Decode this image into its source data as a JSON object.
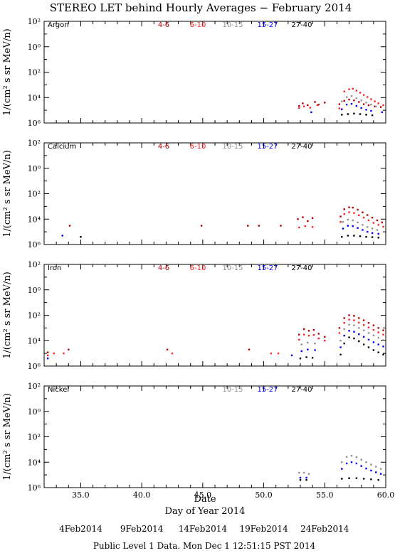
{
  "title": "STEREO LET behind Hourly Averages − February 2014",
  "ylabel": "1/(cm² s sr MeV/n)",
  "xlabel_date": "Date",
  "xlabel": "Day of Year 2014",
  "x_ticks": [
    "35.0",
    "40.0",
    "45.0",
    "50.0",
    "55.0",
    "60.0"
  ],
  "date_ticks": [
    "4Feb2014",
    "9Feb2014",
    "14Feb2014",
    "19Feb2014",
    "24Feb2014"
  ],
  "footer": "Public Level 1 Data.  Mon Dec  1 12:51:15 PST 2014",
  "y_tick_labels": [
    "10⁶",
    "10⁴",
    "10²",
    "10⁰",
    "10²"
  ],
  "colors": {
    "4-6": "#b00000",
    "6-10": "#ff2020",
    "10-15": "#909090",
    "15-27": "#0000ff",
    "27-40": "#000000"
  },
  "chart_data": [
    {
      "type": "scatter",
      "element": "Argon",
      "legend": [
        "4-6",
        "6-10",
        "10-15",
        "15-27",
        "27-40"
      ],
      "xlim": [
        32,
        60
      ],
      "ylim": [
        1e-06,
        100
      ],
      "yscale": "log",
      "series": [
        {
          "name": "4-6",
          "points": [
            [
              52.9,
              2.2e-05
            ],
            [
              53.2,
              3.5e-05
            ],
            [
              53.6,
              2.5e-05
            ],
            [
              54.2,
              4.5e-05
            ],
            [
              54.5,
              2.8e-05
            ],
            [
              55.0,
              4e-05
            ],
            [
              56.2,
              3e-05
            ],
            [
              56.6,
              5.5e-05
            ],
            [
              57.0,
              7e-05
            ],
            [
              57.4,
              6e-05
            ],
            [
              57.8,
              4.5e-05
            ],
            [
              58.2,
              3e-05
            ],
            [
              58.6,
              2.5e-05
            ],
            [
              59.1,
              2e-05
            ],
            [
              59.6,
              1.8e-05
            ]
          ]
        },
        {
          "name": "6-10",
          "points": [
            [
              52.9,
              1.5e-05
            ],
            [
              53.3,
              2e-05
            ],
            [
              53.8,
              1.6e-05
            ],
            [
              54.4,
              2.5e-05
            ],
            [
              56.2,
              1.4e-05
            ],
            [
              56.6,
              0.0003
            ],
            [
              57.0,
              0.00045
            ],
            [
              57.3,
              0.0005
            ],
            [
              57.6,
              0.00035
            ],
            [
              57.9,
              0.00024
            ],
            [
              58.2,
              0.00016
            ],
            [
              58.5,
              0.00011
            ],
            [
              58.8,
              7.5e-05
            ],
            [
              59.1,
              5e-05
            ],
            [
              59.4,
              3.5e-05
            ],
            [
              59.8,
              2.5e-05
            ]
          ]
        },
        {
          "name": "10-15",
          "points": [
            [
              56.4,
              5e-05
            ],
            [
              56.8,
              0.00011
            ],
            [
              57.2,
              0.00013
            ],
            [
              57.6,
              9e-05
            ],
            [
              58.0,
              6e-05
            ],
            [
              58.4,
              4e-05
            ],
            [
              58.8,
              2.8e-05
            ],
            [
              59.2,
              2e-05
            ]
          ]
        },
        {
          "name": "15-27",
          "points": [
            [
              53.9,
              7e-06
            ],
            [
              56.4,
              1.2e-05
            ],
            [
              56.8,
              2.8e-05
            ],
            [
              57.2,
              3.2e-05
            ],
            [
              57.6,
              2.2e-05
            ],
            [
              58.0,
              1.5e-05
            ],
            [
              58.4,
              1.1e-05
            ],
            [
              58.8,
              9e-06
            ],
            [
              59.7,
              7e-06
            ]
          ]
        },
        {
          "name": "27-40",
          "points": [
            [
              56.4,
              4.5e-06
            ],
            [
              56.9,
              5e-06
            ],
            [
              57.4,
              5.5e-06
            ],
            [
              57.9,
              5e-06
            ],
            [
              58.4,
              4.5e-06
            ],
            [
              58.9,
              4e-06
            ]
          ]
        }
      ]
    },
    {
      "type": "scatter",
      "element": "Calcium",
      "legend": [
        "4-6",
        "6-10",
        "10-15",
        "15-27",
        "27-40"
      ],
      "xlim": [
        32,
        60
      ],
      "ylim": [
        1e-06,
        100
      ],
      "yscale": "log",
      "series": [
        {
          "name": "4-6",
          "points": [
            [
              34.1,
              3e-05
            ],
            [
              44.9,
              3e-05
            ],
            [
              48.7,
              3e-05
            ],
            [
              49.6,
              3e-05
            ],
            [
              51.4,
              3e-05
            ],
            [
              52.8,
              0.0001
            ],
            [
              53.2,
              0.00014
            ],
            [
              53.6,
              7e-05
            ],
            [
              54.0,
              0.00012
            ],
            [
              56.3,
              0.00016
            ],
            [
              56.6,
              0.0006
            ],
            [
              57.0,
              0.00085
            ],
            [
              57.3,
              0.0008
            ],
            [
              57.7,
              0.00055
            ],
            [
              58.1,
              0.00034
            ],
            [
              58.5,
              0.00021
            ],
            [
              58.9,
              0.00013
            ],
            [
              59.3,
              8e-05
            ],
            [
              59.7,
              5.5e-05
            ]
          ]
        },
        {
          "name": "6-10",
          "points": [
            [
              52.9,
              2.2e-05
            ],
            [
              53.4,
              2.8e-05
            ],
            [
              54.0,
              2.4e-05
            ],
            [
              56.3,
              6e-05
            ],
            [
              56.6,
              0.00025
            ],
            [
              57.0,
              0.00035
            ],
            [
              57.4,
              0.0003
            ],
            [
              57.8,
              0.0002
            ],
            [
              58.2,
              0.00013
            ],
            [
              58.6,
              8e-05
            ],
            [
              59.0,
              5e-05
            ],
            [
              59.4,
              3.5e-05
            ],
            [
              59.8,
              2.5e-05
            ]
          ]
        },
        {
          "name": "10-15",
          "points": [
            [
              56.5,
              6e-05
            ],
            [
              56.9,
              9e-05
            ],
            [
              57.3,
              8e-05
            ],
            [
              57.7,
              5.5e-05
            ],
            [
              58.1,
              3.5e-05
            ],
            [
              58.5,
              2.4e-05
            ],
            [
              58.9,
              1.8e-05
            ],
            [
              59.3,
              1.4e-05
            ]
          ]
        },
        {
          "name": "15-27",
          "points": [
            [
              33.5,
              5e-06
            ],
            [
              56.5,
              1.8e-05
            ],
            [
              56.9,
              3e-05
            ],
            [
              57.3,
              2.8e-05
            ],
            [
              57.7,
              2e-05
            ],
            [
              58.1,
              1.4e-05
            ],
            [
              58.5,
              1e-05
            ],
            [
              58.9,
              8e-06
            ],
            [
              59.4,
              7e-06
            ]
          ]
        },
        {
          "name": "27-40",
          "points": [
            [
              35.0,
              4e-06
            ],
            [
              56.4,
              4e-06
            ],
            [
              56.9,
              5e-06
            ],
            [
              57.4,
              5e-06
            ],
            [
              57.9,
              4.5e-06
            ],
            [
              58.4,
              4e-06
            ],
            [
              58.9,
              3.8e-06
            ],
            [
              59.4,
              3.5e-06
            ]
          ]
        }
      ]
    },
    {
      "type": "scatter",
      "element": "Iron",
      "legend": [
        "4-6",
        "6-10",
        "10-15",
        "15-27",
        "27-40"
      ],
      "xlim": [
        32,
        60
      ],
      "ylim": [
        1e-06,
        100
      ],
      "yscale": "log",
      "series": [
        {
          "name": "4-6",
          "points": [
            [
              32.3,
              1.2e-05
            ],
            [
              34.0,
              2e-05
            ],
            [
              42.1,
              2e-05
            ],
            [
              48.8,
              2e-05
            ],
            [
              52.9,
              0.0003
            ],
            [
              53.3,
              0.0008
            ],
            [
              53.7,
              0.0006
            ],
            [
              54.1,
              0.0007
            ],
            [
              54.5,
              0.00035
            ],
            [
              55.0,
              0.0002
            ],
            [
              56.2,
              0.001
            ],
            [
              56.6,
              0.006
            ],
            [
              57.0,
              0.01
            ],
            [
              57.4,
              0.009
            ],
            [
              57.8,
              0.006
            ],
            [
              58.2,
              0.004
            ],
            [
              58.6,
              0.0025
            ],
            [
              59.0,
              0.0016
            ],
            [
              59.4,
              0.001
            ],
            [
              59.8,
              0.00065
            ]
          ]
        },
        {
          "name": "6-10",
          "points": [
            [
              32.3,
              7e-06
            ],
            [
              32.8,
              1e-05
            ],
            [
              33.6,
              1e-05
            ],
            [
              42.5,
              1e-05
            ],
            [
              50.6,
              1e-05
            ],
            [
              51.2,
              1e-05
            ],
            [
              52.9,
              0.00012
            ],
            [
              53.3,
              0.0003
            ],
            [
              53.7,
              0.00025
            ],
            [
              54.1,
              0.00028
            ],
            [
              54.5,
              0.00015
            ],
            [
              55.0,
              0.0001
            ],
            [
              56.2,
              0.0004
            ],
            [
              56.6,
              0.0025
            ],
            [
              57.0,
              0.0045
            ],
            [
              57.4,
              0.004
            ],
            [
              57.8,
              0.0026
            ],
            [
              58.2,
              0.0017
            ],
            [
              58.6,
              0.0011
            ],
            [
              59.0,
              0.0007
            ],
            [
              59.4,
              0.00045
            ],
            [
              59.8,
              0.0003
            ]
          ]
        },
        {
          "name": "10-15",
          "points": [
            [
              53.1,
              5e-05
            ],
            [
              53.6,
              7e-05
            ],
            [
              54.2,
              6e-05
            ],
            [
              56.3,
              0.0001
            ],
            [
              56.6,
              0.0008
            ],
            [
              57.0,
              0.0018
            ],
            [
              57.4,
              0.0016
            ],
            [
              57.8,
              0.001
            ],
            [
              58.2,
              0.00065
            ],
            [
              58.6,
              0.0004
            ],
            [
              59.0,
              0.00026
            ],
            [
              59.4,
              0.00017
            ],
            [
              59.8,
              0.00011
            ]
          ]
        },
        {
          "name": "15-27",
          "points": [
            [
              32.3,
              4e-06
            ],
            [
              52.3,
              7e-06
            ],
            [
              53.1,
              1.5e-05
            ],
            [
              53.6,
              2e-05
            ],
            [
              54.2,
              1.8e-05
            ],
            [
              56.3,
              3e-05
            ],
            [
              56.6,
              0.00025
            ],
            [
              57.0,
              0.0006
            ],
            [
              57.4,
              0.0005
            ],
            [
              57.8,
              0.00032
            ],
            [
              58.2,
              0.0002
            ],
            [
              58.6,
              0.00012
            ],
            [
              59.0,
              7.5e-05
            ],
            [
              59.4,
              5e-05
            ],
            [
              59.8,
              3.5e-05
            ]
          ]
        },
        {
          "name": "27-40",
          "points": [
            [
              53.0,
              4e-06
            ],
            [
              53.5,
              5e-06
            ],
            [
              54.0,
              4.5e-06
            ],
            [
              56.3,
              8e-06
            ],
            [
              56.6,
              6e-05
            ],
            [
              57.0,
              0.00018
            ],
            [
              57.4,
              0.00015
            ],
            [
              57.8,
              9e-05
            ],
            [
              58.2,
              5e-05
            ],
            [
              58.6,
              3e-05
            ],
            [
              59.0,
              1.8e-05
            ],
            [
              59.4,
              1.2e-05
            ],
            [
              59.8,
              8e-06
            ]
          ]
        }
      ]
    },
    {
      "type": "scatter",
      "element": "Nickel",
      "legend": [
        "10-15",
        "15-27",
        "27-40"
      ],
      "xlim": [
        32,
        60
      ],
      "ylim": [
        1e-06,
        100
      ],
      "yscale": "log",
      "series": [
        {
          "name": "10-15",
          "points": [
            [
              52.9,
              1.5e-05
            ],
            [
              53.3,
              1.5e-05
            ],
            [
              53.7,
              1.2e-05
            ],
            [
              56.4,
              0.0001
            ],
            [
              56.8,
              0.00026
            ],
            [
              57.2,
              0.00032
            ],
            [
              57.6,
              0.00025
            ],
            [
              58.0,
              0.00016
            ],
            [
              58.4,
              0.0001
            ],
            [
              58.8,
              6.5e-05
            ],
            [
              59.2,
              4.5e-05
            ],
            [
              59.6,
              3e-05
            ]
          ]
        },
        {
          "name": "15-27",
          "points": [
            [
              53.0,
              6e-06
            ],
            [
              53.5,
              6e-06
            ],
            [
              56.4,
              3e-05
            ],
            [
              56.8,
              8e-05
            ],
            [
              57.2,
              0.0001
            ],
            [
              57.6,
              8e-05
            ],
            [
              58.0,
              5e-05
            ],
            [
              58.4,
              3.2e-05
            ],
            [
              58.8,
              2.2e-05
            ],
            [
              59.2,
              1.6e-05
            ],
            [
              59.6,
              1.2e-05
            ]
          ]
        },
        {
          "name": "27-40",
          "points": [
            [
              53.0,
              4e-06
            ],
            [
              53.5,
              4e-06
            ],
            [
              56.4,
              5e-06
            ],
            [
              57.0,
              5.5e-06
            ],
            [
              57.6,
              5.5e-06
            ],
            [
              58.2,
              5e-06
            ],
            [
              58.8,
              4.5e-06
            ],
            [
              59.4,
              4e-06
            ]
          ]
        }
      ]
    }
  ]
}
